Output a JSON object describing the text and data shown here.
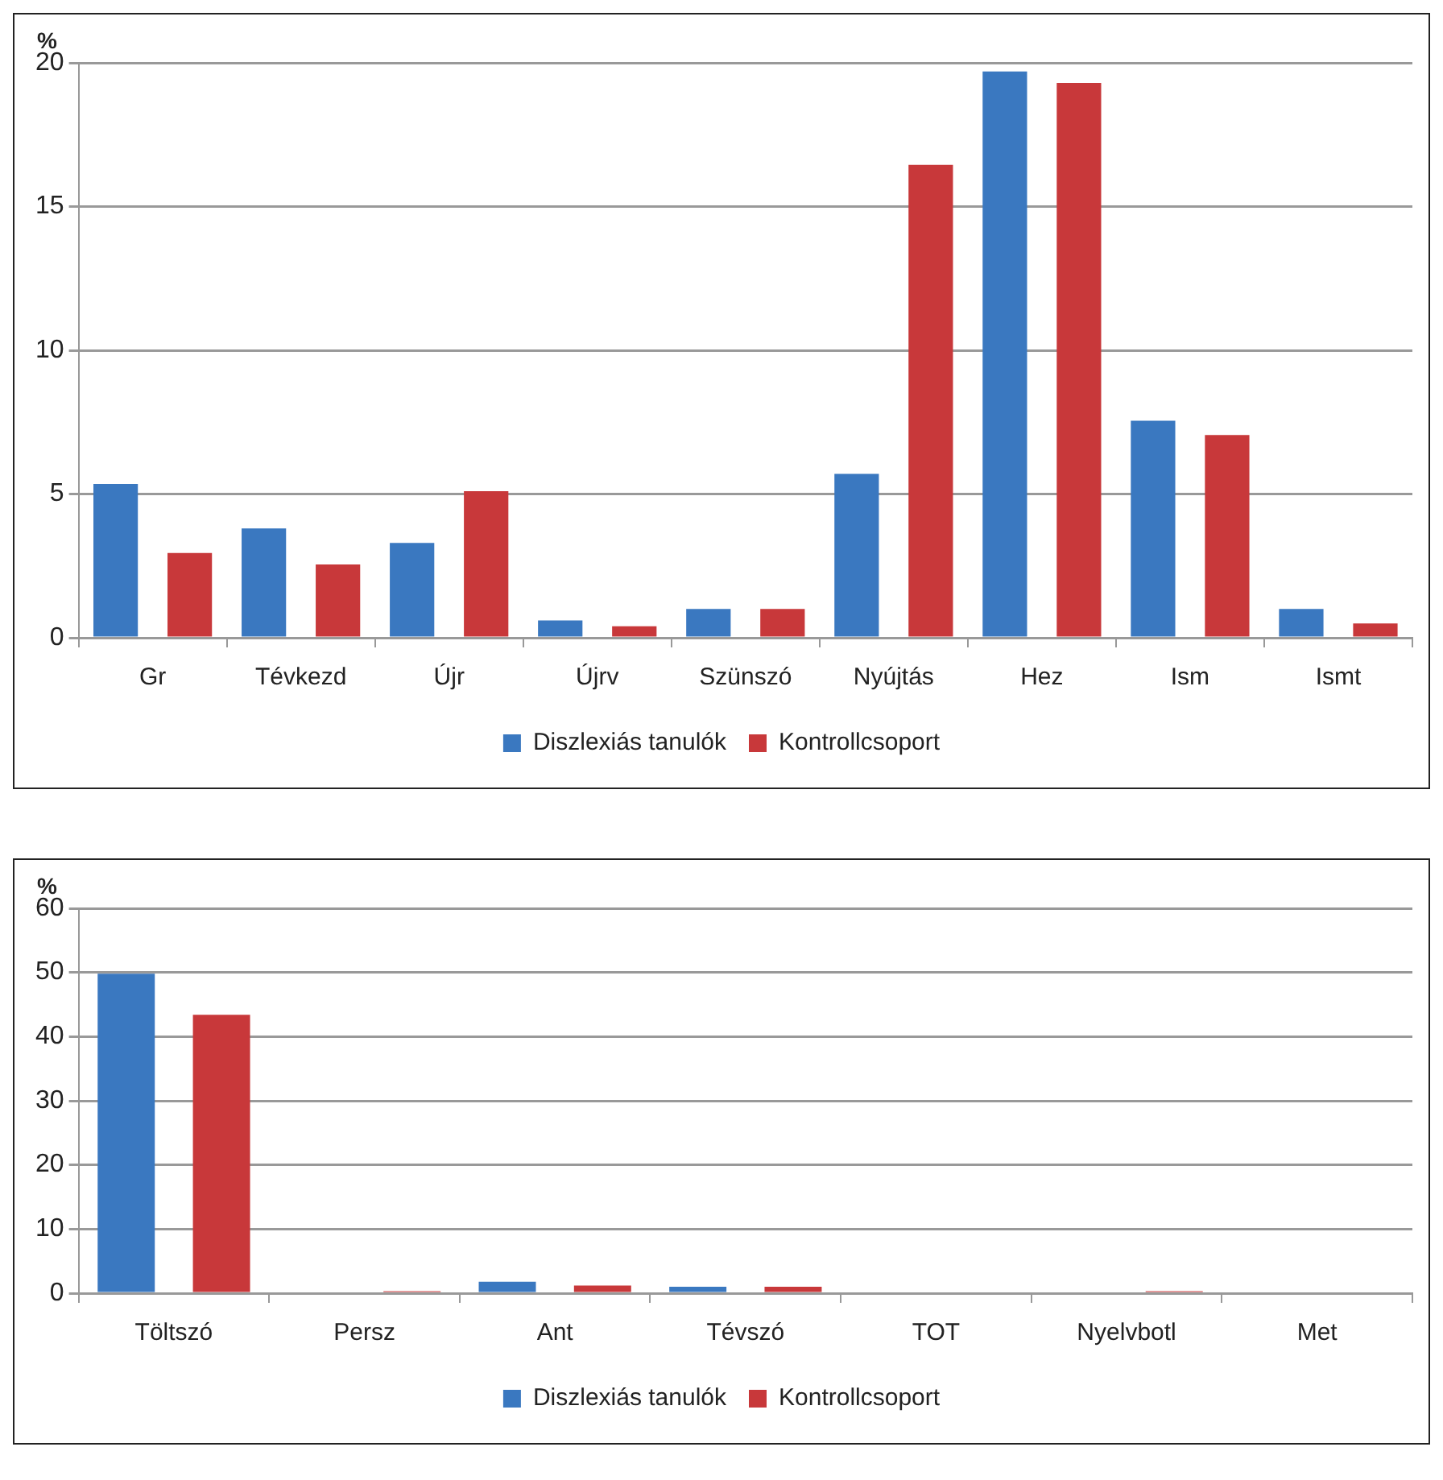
{
  "chart_data": [
    {
      "type": "bar",
      "ylabel": "%",
      "categories": [
        "Gr",
        "Tévkezd",
        "Újr",
        "Újrv",
        "Szünszó",
        "Nyújtás",
        "Hez",
        "Ism",
        "Ismt"
      ],
      "series": [
        {
          "name": "Diszlexiás tanulók",
          "color": "#3a78c0",
          "values": [
            5.35,
            3.8,
            3.3,
            0.6,
            1.0,
            5.7,
            19.7,
            7.55,
            1.0
          ]
        },
        {
          "name": "Kontrollcsoport",
          "color": "#c8383a",
          "values": [
            2.95,
            2.55,
            5.1,
            0.4,
            1.0,
            16.45,
            19.3,
            7.05,
            0.5
          ]
        }
      ],
      "ylim": [
        0,
        20
      ],
      "yticks": [
        0,
        5,
        10,
        15,
        20
      ],
      "grid": "y",
      "legend": "bottom"
    },
    {
      "type": "bar",
      "ylabel": "%",
      "categories": [
        "Töltszó",
        "Persz",
        "Ant",
        "Tévszó",
        "TOT",
        "Nyelvbotl",
        "Met"
      ],
      "series": [
        {
          "name": "Diszlexiás tanulók",
          "color": "#3a78c0",
          "values": [
            49.8,
            0.2,
            1.8,
            1.0,
            0.2,
            0.2,
            0
          ]
        },
        {
          "name": "Kontrollcsoport",
          "color": "#c8383a",
          "values": [
            43.4,
            0.3,
            1.2,
            1.0,
            0,
            0.3,
            0.2
          ]
        }
      ],
      "ylim": [
        0,
        60
      ],
      "yticks": [
        0,
        10,
        20,
        30,
        40,
        50,
        60
      ],
      "grid": "y",
      "legend": "bottom"
    }
  ]
}
